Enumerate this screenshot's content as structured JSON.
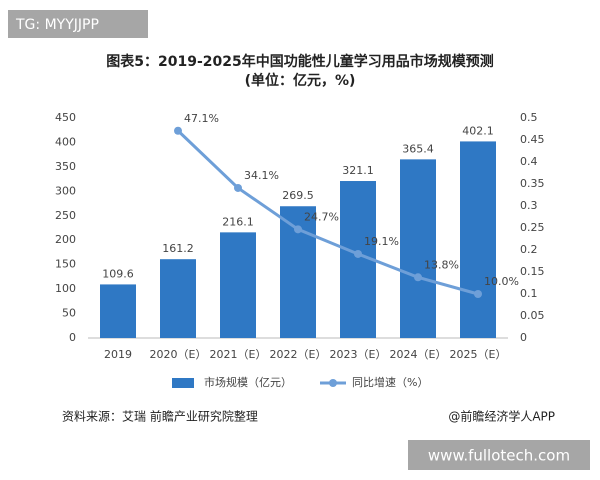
{
  "watermark": "TG: MYYJJPP",
  "footer": {
    "source": "资料来源：艾瑞 前瞻产业研究院整理",
    "credit": "@前瞻经济学人APP",
    "site": "www.fullotech.com"
  },
  "chart_data": {
    "type": "bar",
    "title": "图表5：2019-2025年中国功能性儿童学习用品市场规模预测",
    "subtitle": "(单位：亿元，%)",
    "categories": [
      "2019",
      "2020（E）",
      "2021（E）",
      "2022（E）",
      "2023（E）",
      "2024（E）",
      "2025（E）"
    ],
    "series": [
      {
        "name": "市场规模（亿元）",
        "type": "bar",
        "color": "#2f78c4",
        "values": [
          109.6,
          161.2,
          216.1,
          269.5,
          321.1,
          365.4,
          402.1
        ]
      },
      {
        "name": "同比增速（%）",
        "type": "line",
        "axis": "y2",
        "color": "#6e9fd8",
        "values": [
          null,
          0.471,
          0.341,
          0.247,
          0.191,
          0.138,
          0.1
        ],
        "value_labels": [
          null,
          "47.1%",
          "34.1%",
          "24.7%",
          "19.1%",
          "13.8%",
          "10.0%"
        ]
      }
    ],
    "ylim": [
      0,
      450
    ],
    "yticks": [
      0,
      50,
      100,
      150,
      200,
      250,
      300,
      350,
      400,
      450
    ],
    "y2lim": [
      0,
      0.5
    ],
    "y2ticks": [
      0,
      0.05,
      0.1,
      0.15,
      0.2,
      0.25,
      0.3,
      0.35,
      0.4,
      0.45,
      0.5
    ],
    "grid": false,
    "legend": "bottom"
  }
}
